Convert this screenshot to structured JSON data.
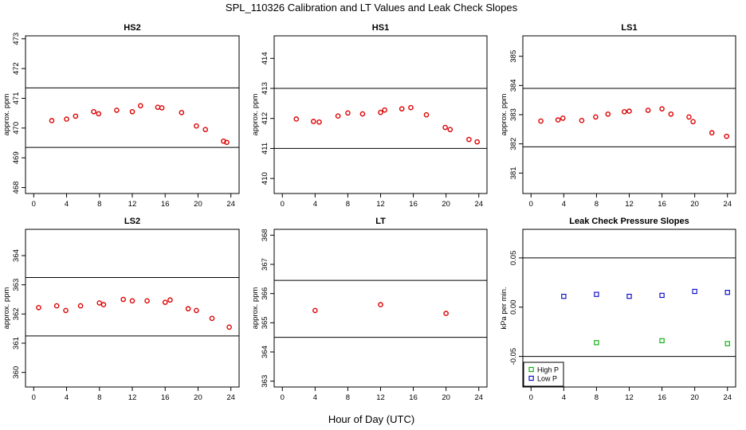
{
  "figure": {
    "title": "SPL_110326  Calibration and LT Values and Leak Check Slopes",
    "xlabel": "Hour of Day (UTC)"
  },
  "chart_data": [
    {
      "id": "hs2",
      "type": "scatter",
      "title": "HS2",
      "ylabel": "approx. ppm",
      "xlim": [
        -1,
        25
      ],
      "ylim": [
        467.8,
        473.1
      ],
      "xticks": [
        0,
        4,
        8,
        12,
        16,
        20,
        24
      ],
      "yticks": [
        468,
        469,
        470,
        471,
        472,
        473
      ],
      "hlines": [
        471.35,
        469.35
      ],
      "series": [
        {
          "marker": "circle",
          "color": "#dd0000",
          "x": [
            2.2,
            4.0,
            5.1,
            7.3,
            7.9,
            10.1,
            12.0,
            13.0,
            15.1,
            15.6,
            18.0,
            19.8,
            20.9,
            23.1,
            23.5
          ],
          "y": [
            470.25,
            470.3,
            470.4,
            470.55,
            470.48,
            470.6,
            470.55,
            470.75,
            470.7,
            470.68,
            470.52,
            470.07,
            469.95,
            469.56,
            469.52
          ]
        }
      ]
    },
    {
      "id": "hs1",
      "type": "scatter",
      "title": "HS1",
      "ylabel": "approx. ppm",
      "xlim": [
        -1,
        25
      ],
      "ylim": [
        409.5,
        414.75
      ],
      "xticks": [
        0,
        4,
        8,
        12,
        16,
        20,
        24
      ],
      "yticks": [
        410,
        411,
        412,
        413,
        414
      ],
      "hlines": [
        413.0,
        411.0
      ],
      "series": [
        {
          "marker": "circle",
          "color": "#dd0000",
          "x": [
            1.7,
            3.8,
            4.5,
            6.8,
            8.0,
            9.8,
            12.0,
            12.5,
            14.6,
            15.7,
            17.6,
            19.9,
            20.5,
            22.8,
            23.8
          ],
          "y": [
            411.98,
            411.9,
            411.88,
            412.08,
            412.18,
            412.15,
            412.2,
            412.28,
            412.32,
            412.36,
            412.12,
            411.7,
            411.63,
            411.3,
            411.22
          ]
        }
      ]
    },
    {
      "id": "ls1",
      "type": "scatter",
      "title": "LS1",
      "ylabel": "approx. ppm",
      "xlim": [
        -1,
        25
      ],
      "ylim": [
        380.3,
        385.7
      ],
      "xticks": [
        0,
        4,
        8,
        12,
        16,
        20,
        24
      ],
      "yticks": [
        381,
        382,
        383,
        384,
        385
      ],
      "hlines": [
        383.9,
        381.9
      ],
      "series": [
        {
          "marker": "circle",
          "color": "#dd0000",
          "x": [
            1.2,
            3.3,
            3.9,
            6.2,
            7.9,
            9.4,
            11.4,
            12.0,
            14.3,
            16.0,
            17.1,
            19.3,
            19.8,
            22.1,
            23.9
          ],
          "y": [
            382.78,
            382.82,
            382.88,
            382.8,
            382.92,
            383.02,
            383.1,
            383.12,
            383.15,
            383.2,
            383.02,
            382.92,
            382.76,
            382.38,
            382.26
          ]
        }
      ]
    },
    {
      "id": "ls2",
      "type": "scatter",
      "title": "LS2",
      "ylabel": "approx. ppm",
      "xlim": [
        -1,
        25
      ],
      "ylim": [
        359.5,
        364.9
      ],
      "xticks": [
        0,
        4,
        8,
        12,
        16,
        20,
        24
      ],
      "yticks": [
        360,
        361,
        362,
        363,
        364
      ],
      "hlines": [
        363.25,
        361.25
      ],
      "series": [
        {
          "marker": "circle",
          "color": "#dd0000",
          "x": [
            0.6,
            2.8,
            3.9,
            5.7,
            8.0,
            8.5,
            10.9,
            12.0,
            13.8,
            16.0,
            16.6,
            18.8,
            19.8,
            21.7,
            23.8
          ],
          "y": [
            362.22,
            362.28,
            362.12,
            362.28,
            362.38,
            362.32,
            362.5,
            362.45,
            362.45,
            362.4,
            362.48,
            362.18,
            362.12,
            361.85,
            361.55
          ]
        }
      ]
    },
    {
      "id": "lt",
      "type": "scatter",
      "title": "LT",
      "ylabel": "approx. ppm",
      "xlim": [
        -1,
        25
      ],
      "ylim": [
        362.8,
        368.2
      ],
      "xticks": [
        0,
        4,
        8,
        12,
        16,
        20,
        24
      ],
      "yticks": [
        363,
        364,
        365,
        366,
        367,
        368
      ],
      "hlines": [
        366.45,
        364.5
      ],
      "series": [
        {
          "marker": "circle",
          "color": "#dd0000",
          "x": [
            4.0,
            12.0,
            20.0
          ],
          "y": [
            365.42,
            365.62,
            365.32
          ]
        }
      ]
    },
    {
      "id": "leak",
      "type": "scatter",
      "title": "Leak Check Pressure Slopes",
      "ylabel": "kPa per min.",
      "xlim": [
        -1,
        25
      ],
      "ylim": [
        -0.081,
        0.079
      ],
      "xticks": [
        0,
        4,
        8,
        12,
        16,
        20,
        24
      ],
      "yticks": [
        -0.05,
        0.0,
        0.05
      ],
      "ytick_labels": [
        "-0.05",
        "0.00",
        "0.05"
      ],
      "hlines": [
        0.05,
        -0.05
      ],
      "legend": {
        "position": "bottom-left",
        "entries": [
          "High P",
          "Low P"
        ]
      },
      "series": [
        {
          "name": "High P",
          "marker": "square",
          "color": "#00aa00",
          "x": [
            8.0,
            16.0,
            24.0
          ],
          "y": [
            -0.036,
            -0.034,
            -0.037
          ]
        },
        {
          "name": "Low P",
          "marker": "square",
          "color": "#0000cc",
          "x": [
            4.0,
            8.0,
            12.0,
            16.0,
            20.0,
            24.0
          ],
          "y": [
            0.011,
            0.013,
            0.011,
            0.012,
            0.016,
            0.015
          ]
        }
      ]
    }
  ]
}
